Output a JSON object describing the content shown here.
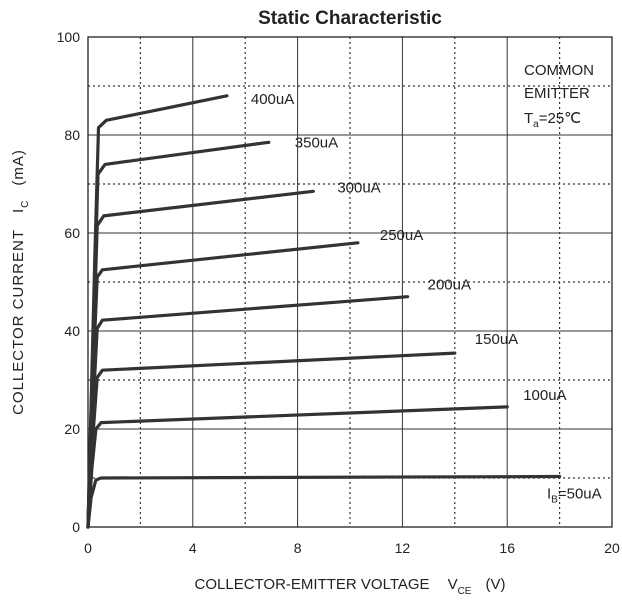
{
  "chart_data": {
    "type": "line",
    "title": "Static Characteristic",
    "xlabel": "COLLECTOR-EMITTER VOLTAGE",
    "xlabel_symbol": "V",
    "xlabel_subscript": "CE",
    "xlabel_unit": "(V)",
    "ylabel": "COLLECTOR CURRENT",
    "ylabel_symbol": "I",
    "ylabel_subscript": "C",
    "ylabel_unit": "(mA)",
    "xlim": [
      0,
      20
    ],
    "ylim": [
      0,
      100
    ],
    "xticks": [
      "0",
      "4",
      "8",
      "12",
      "16",
      "20"
    ],
    "yticks": [
      "0",
      "20",
      "40",
      "60",
      "80",
      "100"
    ],
    "grid": "major solid, minor dotted",
    "annotation": {
      "line1": "COMMON",
      "line2": "EMITTER",
      "sym": "T",
      "sub": "a",
      "rest": "=25℃"
    },
    "ib_label_prefix": "I",
    "ib_label_sub": "B",
    "series": [
      {
        "name": "=50uA",
        "values": [
          [
            0,
            0
          ],
          [
            0.12,
            6
          ],
          [
            0.3,
            9.6
          ],
          [
            0.5,
            10
          ],
          [
            18,
            10.3
          ]
        ]
      },
      {
        "name": "100uA",
        "values": [
          [
            0,
            0
          ],
          [
            0.15,
            12
          ],
          [
            0.3,
            20
          ],
          [
            0.5,
            21.3
          ],
          [
            16,
            24.5
          ]
        ]
      },
      {
        "name": "150uA",
        "values": [
          [
            0,
            0
          ],
          [
            0.18,
            18
          ],
          [
            0.35,
            30.5
          ],
          [
            0.55,
            32
          ],
          [
            14,
            35.5
          ]
        ]
      },
      {
        "name": "200uA",
        "values": [
          [
            0,
            0
          ],
          [
            0.2,
            25
          ],
          [
            0.35,
            40.5
          ],
          [
            0.55,
            42.2
          ],
          [
            12.2,
            47
          ]
        ]
      },
      {
        "name": "250uA",
        "values": [
          [
            0,
            0
          ],
          [
            0.2,
            32
          ],
          [
            0.35,
            51
          ],
          [
            0.55,
            52.5
          ],
          [
            10.3,
            58
          ]
        ]
      },
      {
        "name": "300uA",
        "values": [
          [
            0,
            0
          ],
          [
            0.22,
            40
          ],
          [
            0.35,
            61.5
          ],
          [
            0.6,
            63.5
          ],
          [
            8.6,
            68.5
          ]
        ]
      },
      {
        "name": "350uA",
        "values": [
          [
            0,
            0
          ],
          [
            0.24,
            48
          ],
          [
            0.38,
            72
          ],
          [
            0.65,
            74
          ],
          [
            6.9,
            78.5
          ]
        ]
      },
      {
        "name": "400uA",
        "values": [
          [
            0,
            0
          ],
          [
            0.26,
            55
          ],
          [
            0.4,
            81.5
          ],
          [
            0.7,
            83
          ],
          [
            5.3,
            88
          ]
        ]
      }
    ]
  }
}
